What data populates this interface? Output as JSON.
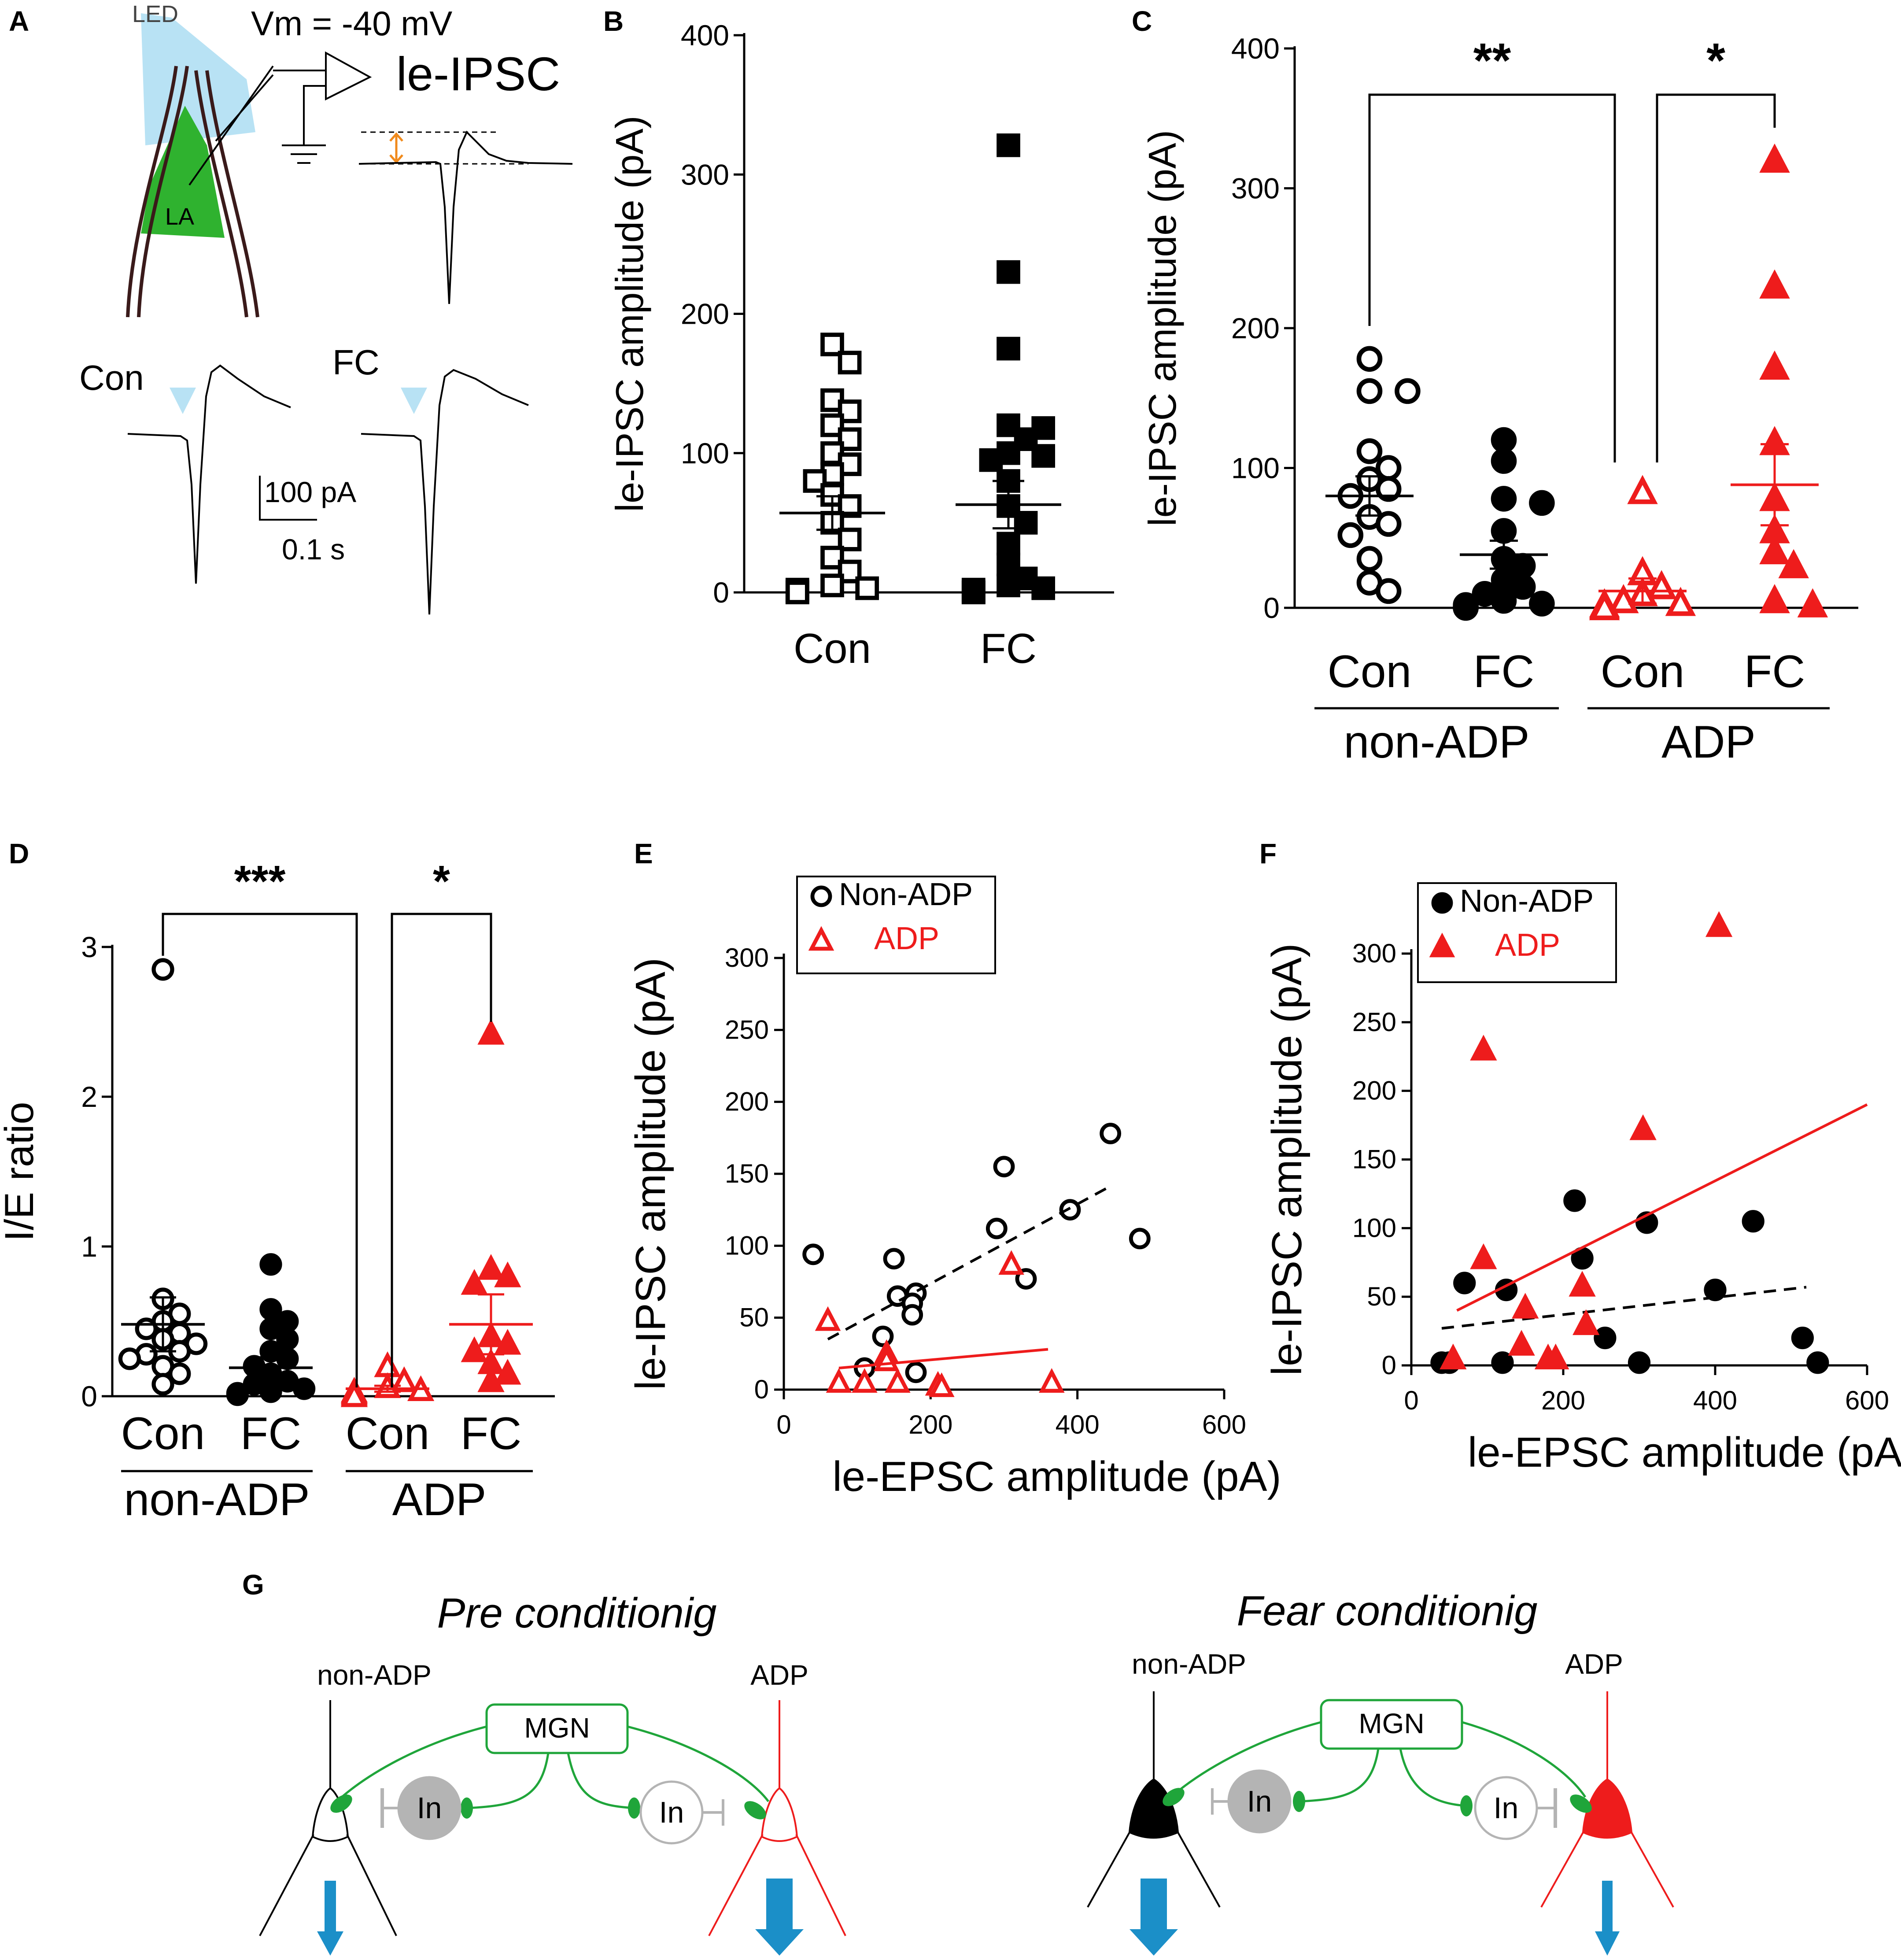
{
  "colors": {
    "black": "#000000",
    "red": "#ee1c1c",
    "green": "#1fa53a",
    "led": "#b8e2f4",
    "la_fill": "#2fb22f",
    "blue_arrow": "#1b8fc8",
    "gray": "#b4b4b4",
    "orange": "#f08a1c"
  },
  "panel_letters": {
    "A": "A",
    "B": "B",
    "C": "C",
    "D": "D",
    "E": "E",
    "F": "F",
    "G": "G"
  },
  "panelA": {
    "led_label": "LED",
    "vm_label": "Vm = -40 mV",
    "ipsc_label": "le-IPSC",
    "la_label": "LA",
    "con_label": "Con",
    "fc_label": "FC",
    "scale_amp": "100 pA",
    "scale_time": "0.1 s"
  },
  "chart_data": [
    {
      "id": "B",
      "type": "scatter",
      "title": "",
      "ylabel": "le-IPSC amplitude (pA)",
      "xlabel": "",
      "ylim": [
        0,
        400
      ],
      "yticks": [
        0,
        100,
        200,
        300,
        400
      ],
      "categories": [
        "Con",
        "FC"
      ],
      "series": [
        {
          "name": "Con",
          "marker": "open-square",
          "color": "#000000",
          "values": [
            178,
            165,
            138,
            130,
            120,
            110,
            100,
            92,
            85,
            80,
            70,
            62,
            50,
            38,
            25,
            15,
            5,
            3,
            2,
            1,
            0,
            0,
            0
          ],
          "mean": 57,
          "sem": 12
        },
        {
          "name": "FC",
          "marker": "filled-square",
          "color": "#000000",
          "values": [
            321,
            230,
            175,
            120,
            118,
            110,
            100,
            98,
            95,
            80,
            62,
            50,
            35,
            20,
            10,
            5,
            3,
            2,
            1,
            0,
            0,
            0,
            0
          ],
          "mean": 63,
          "sem": 17
        }
      ]
    },
    {
      "id": "C",
      "type": "scatter",
      "title": "",
      "ylabel": "le-IPSC amplitude (pA)",
      "xlabel": "",
      "ylim": [
        0,
        400
      ],
      "yticks": [
        0,
        100,
        200,
        300,
        400
      ],
      "categories": [
        "Con",
        "FC",
        "Con",
        "FC"
      ],
      "groups": [
        "non-ADP",
        "ADP"
      ],
      "significance": [
        {
          "label": "**",
          "from": 0,
          "to": 2
        },
        {
          "label": "*",
          "from": 2,
          "to": 3
        }
      ],
      "series": [
        {
          "name": "non-ADP Con",
          "marker": "open-circle",
          "color": "#000000",
          "values": [
            178,
            155,
            155,
            112,
            100,
            92,
            85,
            80,
            65,
            60,
            52,
            35,
            18,
            12
          ],
          "mean": 80,
          "sem": 14
        },
        {
          "name": "non-ADP FC",
          "marker": "filled-circle",
          "color": "#000000",
          "values": [
            120,
            105,
            78,
            75,
            55,
            35,
            30,
            20,
            15,
            10,
            5,
            3,
            2,
            1,
            0,
            0
          ],
          "mean": 38,
          "sem": 10
        },
        {
          "name": "ADP Con",
          "marker": "open-triangle",
          "color": "#ee1c1c",
          "values": [
            83,
            25,
            15,
            10,
            5,
            3,
            2,
            1,
            0
          ],
          "mean": 12,
          "sem": 9
        },
        {
          "name": "ADP FC",
          "marker": "filled-triangle",
          "color": "#ee1c1c",
          "values": [
            320,
            230,
            172,
            118,
            78,
            55,
            40,
            30,
            5,
            2
          ],
          "mean": 88,
          "sem": 29
        }
      ]
    },
    {
      "id": "D",
      "type": "scatter",
      "title": "",
      "ylabel": "I/E ratio",
      "xlabel": "",
      "ylim": [
        0,
        3
      ],
      "yticks": [
        0,
        1,
        2,
        3
      ],
      "categories": [
        "Con",
        "FC",
        "Con",
        "FC"
      ],
      "groups": [
        "non-ADP",
        "ADP"
      ],
      "significance": [
        {
          "label": "***",
          "from": 0,
          "to": 2
        },
        {
          "label": "*",
          "from": 2,
          "to": 3
        }
      ],
      "series": [
        {
          "name": "non-ADP Con",
          "marker": "open-circle",
          "color": "#000000",
          "values": [
            2.85,
            0.65,
            0.55,
            0.5,
            0.45,
            0.42,
            0.38,
            0.35,
            0.3,
            0.28,
            0.25,
            0.2,
            0.15,
            0.08
          ],
          "mean": 0.48,
          "sem": 0.18
        },
        {
          "name": "non-ADP FC",
          "marker": "filled-circle",
          "color": "#000000",
          "values": [
            0.88,
            0.58,
            0.5,
            0.45,
            0.38,
            0.3,
            0.25,
            0.2,
            0.15,
            0.1,
            0.08,
            0.05,
            0.03,
            0.02,
            0.01
          ],
          "mean": 0.19,
          "sem": 0.07
        },
        {
          "name": "ADP Con",
          "marker": "open-triangle",
          "color": "#ee1c1c",
          "values": [
            0.2,
            0.1,
            0.06,
            0.04,
            0.03,
            0.02,
            0.01,
            0.0
          ],
          "mean": 0.05,
          "sem": 0.02
        },
        {
          "name": "ADP FC",
          "marker": "filled-triangle",
          "color": "#ee1c1c",
          "values": [
            2.42,
            0.85,
            0.8,
            0.75,
            0.4,
            0.35,
            0.3,
            0.22,
            0.15,
            0.1
          ],
          "mean": 0.48,
          "sem": 0.2
        }
      ]
    },
    {
      "id": "E",
      "type": "scatter",
      "title": "",
      "xlabel": "le-EPSC amplitude (pA)",
      "ylabel": "le-IPSC amplitude (pA)",
      "xlim": [
        0,
        600
      ],
      "ylim": [
        0,
        300
      ],
      "xticks": [
        0,
        200,
        400,
        600
      ],
      "yticks": [
        0,
        50,
        100,
        150,
        200,
        250,
        300
      ],
      "legend": [
        "Non-ADP",
        "ADP"
      ],
      "series": [
        {
          "name": "Non-ADP",
          "marker": "open-circle",
          "color": "#000000",
          "x": [
            445,
            300,
            390,
            290,
            485,
            330,
            40,
            150,
            155,
            180,
            175,
            175,
            135,
            110,
            180
          ],
          "y": [
            178,
            155,
            125,
            112,
            105,
            77,
            94,
            91,
            65,
            67,
            60,
            52,
            37,
            15,
            12
          ],
          "fit": {
            "x": [
              60,
              440
            ],
            "y": [
              35,
              140
            ],
            "style": "dashed"
          }
        },
        {
          "name": "ADP",
          "marker": "open-triangle",
          "color": "#ee1c1c",
          "x": [
            60,
            310,
            140,
            75,
            110,
            155,
            210,
            215,
            365,
            140
          ],
          "y": [
            48,
            87,
            25,
            5,
            5,
            5,
            3,
            2,
            5,
            20
          ],
          "fit": {
            "x": [
              75,
              360
            ],
            "y": [
              15,
              28
            ],
            "style": "solid"
          }
        }
      ]
    },
    {
      "id": "F",
      "type": "scatter",
      "title": "",
      "xlabel": "le-EPSC amplitude (pA)",
      "ylabel": "le-IPSC amplitude (pA)",
      "xlim": [
        0,
        600
      ],
      "ylim": [
        0,
        300
      ],
      "xticks": [
        0,
        200,
        400,
        600
      ],
      "yticks": [
        0,
        50,
        100,
        150,
        200,
        250,
        300
      ],
      "legend": [
        "Non-ADP",
        "ADP"
      ],
      "series": [
        {
          "name": "Non-ADP",
          "marker": "filled-circle",
          "color": "#000000",
          "x": [
            215,
            310,
            450,
            225,
            70,
            125,
            400,
            255,
            515,
            40,
            50,
            120,
            300,
            535
          ],
          "y": [
            120,
            104,
            105,
            78,
            60,
            55,
            55,
            20,
            20,
            2,
            2,
            2,
            2,
            2
          ],
          "fit": {
            "x": [
              40,
              520
            ],
            "y": [
              27,
              57
            ],
            "style": "dashed"
          }
        },
        {
          "name": "ADP",
          "marker": "filled-triangle",
          "color": "#ee1c1c",
          "x": [
            405,
            95,
            305,
            95,
            225,
            150,
            230,
            145,
            55,
            190,
            180
          ],
          "y": [
            320,
            230,
            172,
            78,
            58,
            42,
            30,
            15,
            5,
            5,
            5
          ],
          "fit": {
            "x": [
              60,
              600
            ],
            "y": [
              40,
              190
            ],
            "style": "solid"
          }
        }
      ]
    }
  ],
  "panelG": {
    "left_title": "Pre conditionig",
    "right_title": "Fear conditionig",
    "non_adp": "non-ADP",
    "adp": "ADP",
    "mgn": "MGN",
    "interneuron": "In"
  }
}
